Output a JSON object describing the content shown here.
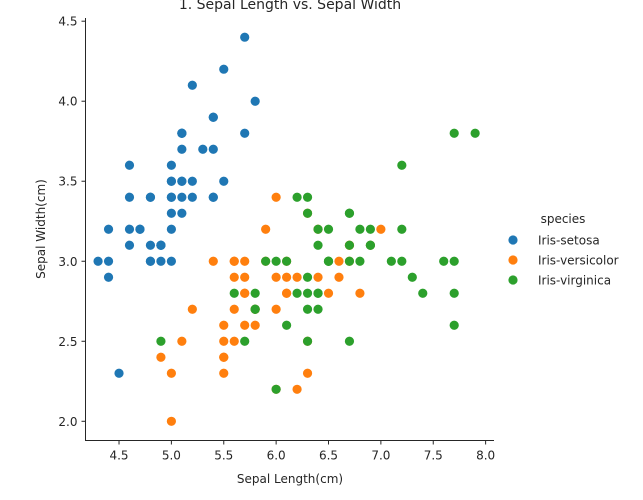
{
  "chart_data": {
    "type": "scatter",
    "title": "1. Sepal Length vs. Sepal Width",
    "xlabel": "Sepal Length(cm)",
    "ylabel": "Sepal Width(cm)",
    "xlim": [
      4.18,
      8.08
    ],
    "ylim": [
      1.88,
      4.52
    ],
    "xticks": [
      "4.5",
      "5.0",
      "5.5",
      "6.0",
      "6.5",
      "7.0",
      "7.5",
      "8.0"
    ],
    "yticks": [
      "2.0",
      "2.5",
      "3.0",
      "3.5",
      "4.0",
      "4.5"
    ],
    "grid": false,
    "legend_position": "right",
    "legend": {
      "title": "species",
      "entries": [
        "Iris-setosa",
        "Iris-versicolor",
        "Iris-virginica"
      ]
    },
    "series": [
      {
        "name": "Iris-setosa",
        "color": "#1f77b4",
        "points": [
          [
            5.1,
            3.5
          ],
          [
            4.9,
            3.0
          ],
          [
            4.7,
            3.2
          ],
          [
            4.6,
            3.1
          ],
          [
            5.0,
            3.6
          ],
          [
            5.4,
            3.9
          ],
          [
            4.6,
            3.4
          ],
          [
            5.0,
            3.4
          ],
          [
            4.4,
            2.9
          ],
          [
            4.9,
            3.1
          ],
          [
            5.4,
            3.7
          ],
          [
            4.8,
            3.4
          ],
          [
            4.8,
            3.0
          ],
          [
            4.3,
            3.0
          ],
          [
            5.8,
            4.0
          ],
          [
            5.7,
            4.4
          ],
          [
            5.4,
            3.9
          ],
          [
            5.1,
            3.5
          ],
          [
            5.7,
            3.8
          ],
          [
            5.1,
            3.8
          ],
          [
            5.4,
            3.4
          ],
          [
            5.1,
            3.7
          ],
          [
            4.6,
            3.6
          ],
          [
            5.1,
            3.3
          ],
          [
            4.8,
            3.4
          ],
          [
            5.0,
            3.0
          ],
          [
            5.0,
            3.4
          ],
          [
            5.2,
            3.5
          ],
          [
            5.2,
            3.4
          ],
          [
            4.7,
            3.2
          ],
          [
            4.8,
            3.1
          ],
          [
            5.4,
            3.4
          ],
          [
            5.2,
            4.1
          ],
          [
            5.5,
            4.2
          ],
          [
            4.9,
            3.1
          ],
          [
            5.0,
            3.2
          ],
          [
            5.5,
            3.5
          ],
          [
            4.9,
            3.1
          ],
          [
            4.4,
            3.0
          ],
          [
            5.1,
            3.4
          ],
          [
            5.0,
            3.5
          ],
          [
            4.5,
            2.3
          ],
          [
            4.4,
            3.2
          ],
          [
            5.0,
            3.5
          ],
          [
            5.1,
            3.8
          ],
          [
            4.8,
            3.0
          ],
          [
            5.1,
            3.8
          ],
          [
            4.6,
            3.2
          ],
          [
            5.3,
            3.7
          ],
          [
            5.0,
            3.3
          ]
        ]
      },
      {
        "name": "Iris-versicolor",
        "color": "#ff7f0e",
        "points": [
          [
            7.0,
            3.2
          ],
          [
            6.4,
            3.2
          ],
          [
            6.9,
            3.1
          ],
          [
            5.5,
            2.3
          ],
          [
            6.5,
            2.8
          ],
          [
            5.7,
            2.8
          ],
          [
            6.3,
            3.3
          ],
          [
            4.9,
            2.4
          ],
          [
            6.6,
            2.9
          ],
          [
            5.2,
            2.7
          ],
          [
            5.0,
            2.0
          ],
          [
            5.9,
            3.0
          ],
          [
            6.0,
            2.2
          ],
          [
            6.1,
            2.9
          ],
          [
            5.6,
            2.9
          ],
          [
            6.7,
            3.1
          ],
          [
            5.6,
            3.0
          ],
          [
            5.8,
            2.7
          ],
          [
            6.2,
            2.2
          ],
          [
            5.6,
            2.5
          ],
          [
            5.9,
            3.2
          ],
          [
            6.1,
            2.8
          ],
          [
            6.3,
            2.5
          ],
          [
            6.1,
            2.8
          ],
          [
            6.4,
            2.9
          ],
          [
            6.6,
            3.0
          ],
          [
            6.8,
            2.8
          ],
          [
            6.7,
            3.0
          ],
          [
            6.0,
            2.9
          ],
          [
            5.7,
            2.6
          ],
          [
            5.5,
            2.4
          ],
          [
            5.5,
            2.4
          ],
          [
            5.8,
            2.7
          ],
          [
            6.0,
            2.7
          ],
          [
            5.4,
            3.0
          ],
          [
            6.0,
            3.4
          ],
          [
            6.7,
            3.1
          ],
          [
            6.3,
            2.3
          ],
          [
            5.6,
            3.0
          ],
          [
            5.5,
            2.5
          ],
          [
            5.5,
            2.6
          ],
          [
            6.1,
            3.0
          ],
          [
            5.8,
            2.6
          ],
          [
            5.0,
            2.3
          ],
          [
            5.6,
            2.7
          ],
          [
            5.7,
            3.0
          ],
          [
            5.7,
            2.9
          ],
          [
            6.2,
            2.9
          ],
          [
            5.1,
            2.5
          ],
          [
            5.7,
            2.8
          ]
        ]
      },
      {
        "name": "Iris-virginica",
        "color": "#2ca02c",
        "points": [
          [
            6.3,
            3.3
          ],
          [
            5.8,
            2.7
          ],
          [
            7.1,
            3.0
          ],
          [
            6.3,
            2.9
          ],
          [
            6.5,
            3.0
          ],
          [
            7.6,
            3.0
          ],
          [
            4.9,
            2.5
          ],
          [
            7.3,
            2.9
          ],
          [
            6.7,
            2.5
          ],
          [
            7.2,
            3.6
          ],
          [
            6.5,
            3.2
          ],
          [
            6.4,
            2.7
          ],
          [
            6.8,
            3.0
          ],
          [
            5.7,
            2.5
          ],
          [
            5.8,
            2.8
          ],
          [
            6.4,
            3.2
          ],
          [
            6.5,
            3.0
          ],
          [
            7.7,
            3.8
          ],
          [
            7.7,
            2.6
          ],
          [
            6.0,
            2.2
          ],
          [
            6.9,
            3.2
          ],
          [
            5.6,
            2.8
          ],
          [
            7.7,
            2.8
          ],
          [
            6.3,
            2.7
          ],
          [
            6.7,
            3.3
          ],
          [
            7.2,
            3.2
          ],
          [
            6.2,
            2.8
          ],
          [
            6.1,
            3.0
          ],
          [
            6.4,
            2.8
          ],
          [
            7.2,
            3.0
          ],
          [
            7.4,
            2.8
          ],
          [
            7.9,
            3.8
          ],
          [
            6.4,
            2.8
          ],
          [
            6.3,
            2.8
          ],
          [
            6.1,
            2.6
          ],
          [
            7.7,
            3.0
          ],
          [
            6.3,
            3.4
          ],
          [
            6.4,
            3.1
          ],
          [
            6.0,
            3.0
          ],
          [
            6.9,
            3.1
          ],
          [
            6.7,
            3.1
          ],
          [
            6.9,
            3.1
          ],
          [
            5.8,
            2.7
          ],
          [
            6.8,
            3.2
          ],
          [
            6.7,
            3.3
          ],
          [
            6.7,
            3.0
          ],
          [
            6.3,
            2.5
          ],
          [
            6.5,
            3.0
          ],
          [
            6.2,
            3.4
          ],
          [
            5.9,
            3.0
          ]
        ]
      }
    ]
  }
}
